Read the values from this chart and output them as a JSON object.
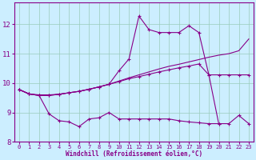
{
  "xlabel": "Windchill (Refroidissement éolien,°C)",
  "background_color": "#cceeff",
  "grid_color": "#99ccbb",
  "line_color": "#880088",
  "xlim": [
    -0.5,
    23.5
  ],
  "ylim": [
    8,
    12.75
  ],
  "xticks": [
    0,
    1,
    2,
    3,
    4,
    5,
    6,
    7,
    8,
    9,
    10,
    11,
    12,
    13,
    14,
    15,
    16,
    17,
    18,
    19,
    20,
    21,
    22,
    23
  ],
  "yticks": [
    8,
    9,
    10,
    11,
    12
  ],
  "line1_x": [
    0,
    1,
    2,
    3,
    4,
    5,
    6,
    7,
    8,
    9,
    10,
    11,
    12,
    13,
    14,
    15,
    16,
    17,
    18,
    19,
    20,
    21,
    22,
    23
  ],
  "line1_y": [
    9.78,
    9.63,
    9.58,
    9.58,
    9.62,
    9.67,
    9.72,
    9.79,
    9.87,
    9.96,
    10.07,
    10.18,
    10.28,
    10.38,
    10.48,
    10.57,
    10.64,
    10.72,
    10.8,
    10.88,
    10.95,
    11.0,
    11.1,
    11.5
  ],
  "line2_x": [
    0,
    1,
    2,
    3,
    4,
    5,
    6,
    7,
    8,
    9,
    10,
    11,
    12,
    13,
    14,
    15,
    16,
    17,
    18,
    19,
    20,
    21,
    22,
    23
  ],
  "line2_y": [
    9.78,
    9.63,
    9.6,
    9.6,
    9.62,
    9.67,
    9.72,
    9.79,
    9.87,
    9.96,
    10.42,
    10.82,
    12.28,
    11.82,
    11.72,
    11.72,
    11.72,
    11.95,
    11.72,
    10.28,
    10.28,
    10.28,
    10.28,
    10.28
  ],
  "line3_x": [
    0,
    1,
    2,
    3,
    4,
    5,
    6,
    7,
    8,
    9,
    10,
    11,
    12,
    13,
    14,
    15,
    16,
    17,
    18,
    19,
    20
  ],
  "line3_y": [
    9.78,
    9.63,
    9.58,
    9.58,
    9.62,
    9.67,
    9.72,
    9.79,
    9.87,
    9.96,
    10.05,
    10.15,
    10.22,
    10.3,
    10.38,
    10.45,
    10.52,
    10.58,
    10.65,
    10.28,
    8.6
  ],
  "line4_x": [
    0,
    1,
    2,
    3,
    4,
    5,
    6,
    7,
    8,
    9,
    10,
    11,
    12,
    13,
    14,
    15,
    16,
    17,
    18,
    19,
    20,
    21,
    22,
    23
  ],
  "line4_y": [
    9.78,
    9.63,
    9.58,
    8.95,
    8.72,
    8.68,
    8.52,
    8.78,
    8.82,
    9.0,
    8.78,
    8.78,
    8.78,
    8.78,
    8.78,
    8.78,
    8.72,
    8.68,
    8.65,
    8.62,
    8.62,
    8.62,
    8.9,
    8.62
  ]
}
